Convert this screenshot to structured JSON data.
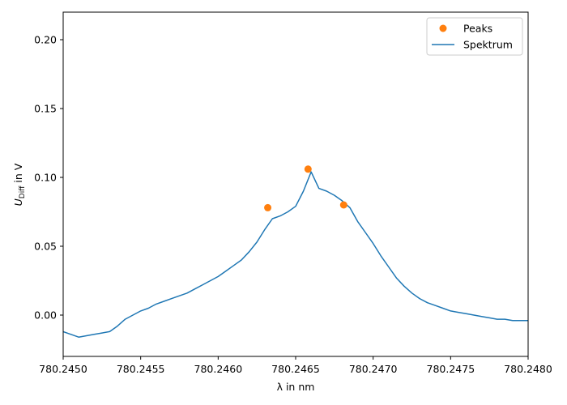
{
  "chart_data": {
    "type": "line",
    "title": "",
    "xlabel": "λ in nm",
    "ylabel": "U_Diff in V",
    "ylabel_main": "U",
    "ylabel_sub": "Diff",
    "ylabel_rest": " in V",
    "xlim": [
      780.245,
      780.248
    ],
    "ylim": [
      -0.03,
      0.22
    ],
    "x_ticks": [
      780.245,
      780.2455,
      780.246,
      780.2465,
      780.247,
      780.2475,
      780.248
    ],
    "x_tick_labels": [
      "780.2450",
      "780.2455",
      "780.2460",
      "780.2465",
      "780.2470",
      "780.2475",
      "780.2480"
    ],
    "y_ticks": [
      0.0,
      0.05,
      0.1,
      0.15,
      0.2
    ],
    "y_tick_labels": [
      "0.00",
      "0.05",
      "0.10",
      "0.15",
      "0.20"
    ],
    "grid": false,
    "legend_position": "top-right",
    "series": [
      {
        "name": "Spektrum",
        "kind": "line",
        "color": "#1f77b4",
        "x": [
          780.245,
          780.24505,
          780.2451,
          780.24515,
          780.2452,
          780.24525,
          780.2453,
          780.24535,
          780.2454,
          780.24545,
          780.2455,
          780.24555,
          780.2456,
          780.24565,
          780.2457,
          780.24575,
          780.2458,
          780.24585,
          780.2459,
          780.24595,
          780.246,
          780.24605,
          780.2461,
          780.24615,
          780.2462,
          780.24625,
          780.2463,
          780.24635,
          780.2464,
          780.24645,
          780.2465,
          780.24655,
          780.2466,
          780.24665,
          780.2467,
          780.24675,
          780.2468,
          780.24685,
          780.2469,
          780.24695,
          780.247,
          780.24705,
          780.2471,
          780.24715,
          780.2472,
          780.24725,
          780.2473,
          780.24735,
          780.2474,
          780.24745,
          780.2475,
          780.24755,
          780.2476,
          780.24765,
          780.2477,
          780.24775,
          780.2478,
          780.24785,
          780.2479,
          780.24795,
          780.248
        ],
        "y": [
          -0.012,
          -0.014,
          -0.016,
          -0.015,
          -0.014,
          -0.013,
          -0.012,
          -0.008,
          -0.003,
          0.0,
          0.003,
          0.005,
          0.008,
          0.01,
          0.012,
          0.014,
          0.016,
          0.019,
          0.022,
          0.025,
          0.028,
          0.032,
          0.036,
          0.04,
          0.046,
          0.053,
          0.062,
          0.07,
          0.072,
          0.075,
          0.079,
          0.09,
          0.104,
          0.092,
          0.09,
          0.087,
          0.083,
          0.078,
          0.068,
          0.06,
          0.052,
          0.043,
          0.035,
          0.027,
          0.021,
          0.016,
          0.012,
          0.009,
          0.007,
          0.005,
          0.003,
          0.002,
          0.001,
          0.0,
          -0.001,
          -0.002,
          -0.003,
          -0.003,
          -0.004,
          -0.004,
          -0.004
        ]
      },
      {
        "name": "Peaks",
        "kind": "scatter",
        "color": "#ff7f0e",
        "x": [
          780.24632,
          780.24658,
          780.24681
        ],
        "y": [
          0.078,
          0.106,
          0.08
        ]
      }
    ]
  }
}
